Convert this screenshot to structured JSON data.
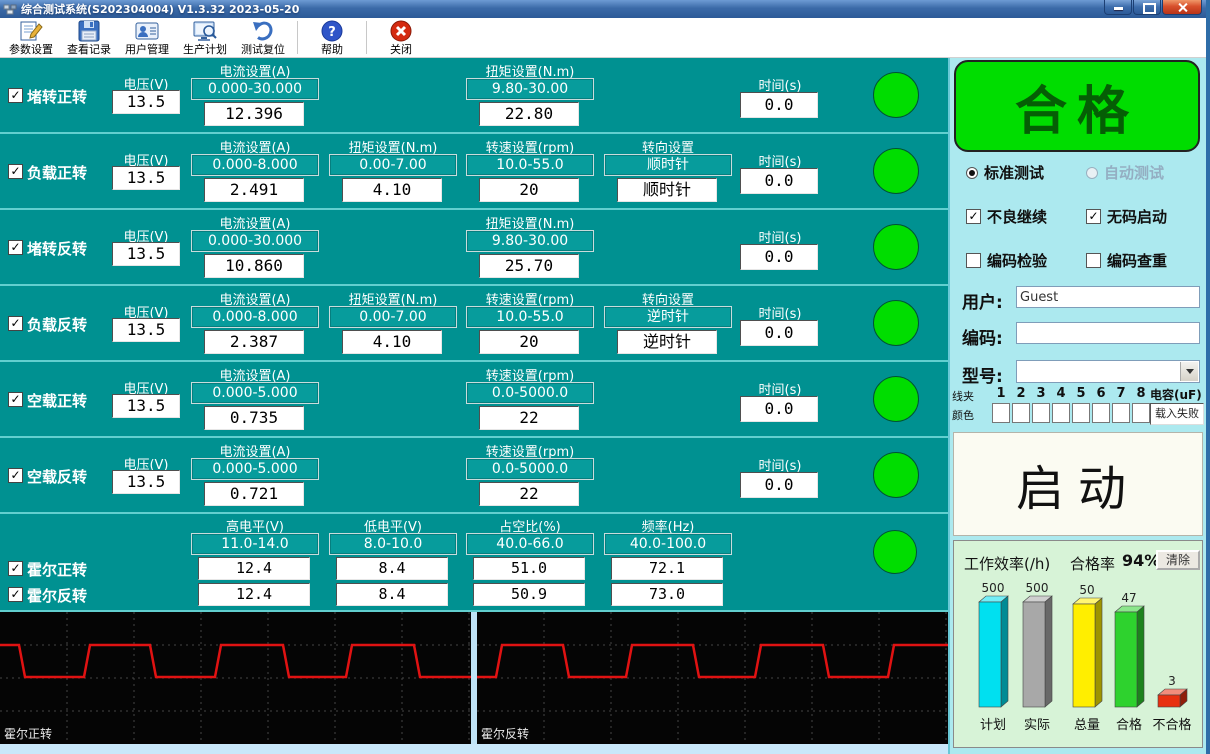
{
  "window": {
    "title": "综合测试系统(S202304004) V1.3.32 2023-05-20"
  },
  "toolbar": {
    "buttons": [
      {
        "label": "参数设置",
        "icon": "parameter-settings-icon"
      },
      {
        "label": "查看记录",
        "icon": "view-records-icon"
      },
      {
        "label": "用户管理",
        "icon": "user-management-icon"
      },
      {
        "label": "生产计划",
        "icon": "production-plan-icon"
      },
      {
        "label": "测试复位",
        "icon": "test-reset-icon",
        "separator_after": true
      },
      {
        "label": "帮助",
        "icon": "help-icon",
        "separator_after": true
      },
      {
        "label": "关闭",
        "icon": "close-app-icon"
      }
    ]
  },
  "test_rows": [
    {
      "name": "堵转正转",
      "checked": true,
      "voltage_label": "电压(V)",
      "voltage": "13.5",
      "time_label": "时间(s)",
      "time": "0.0",
      "status_color": "#00dd00",
      "columns": [
        {
          "header": "电流设置(A)",
          "range": "0.000-30.000",
          "value": "12.396"
        },
        null,
        {
          "header": "扭矩设置(N.m)",
          "range": "9.80-30.00",
          "value": "22.80"
        },
        null
      ]
    },
    {
      "name": "负载正转",
      "checked": true,
      "voltage_label": "电压(V)",
      "voltage": "13.5",
      "time_label": "时间(s)",
      "time": "0.0",
      "status_color": "#00dd00",
      "columns": [
        {
          "header": "电流设置(A)",
          "range": "0.000-8.000",
          "value": "2.491"
        },
        {
          "header": "扭矩设置(N.m)",
          "range": "0.00-7.00",
          "value": "4.10"
        },
        {
          "header": "转速设置(rpm)",
          "range": "10.0-55.0",
          "value": "20"
        },
        {
          "header": "转向设置",
          "range": "顺时针",
          "value": "顺时针"
        }
      ]
    },
    {
      "name": "堵转反转",
      "checked": true,
      "voltage_label": "电压(V)",
      "voltage": "13.5",
      "time_label": "时间(s)",
      "time": "0.0",
      "status_color": "#00dd00",
      "columns": [
        {
          "header": "电流设置(A)",
          "range": "0.000-30.000",
          "value": "10.860"
        },
        null,
        {
          "header": "扭矩设置(N.m)",
          "range": "9.80-30.00",
          "value": "25.70"
        },
        null
      ]
    },
    {
      "name": "负载反转",
      "checked": true,
      "voltage_label": "电压(V)",
      "voltage": "13.5",
      "time_label": "时间(s)",
      "time": "0.0",
      "status_color": "#00dd00",
      "columns": [
        {
          "header": "电流设置(A)",
          "range": "0.000-8.000",
          "value": "2.387"
        },
        {
          "header": "扭矩设置(N.m)",
          "range": "0.00-7.00",
          "value": "4.10"
        },
        {
          "header": "转速设置(rpm)",
          "range": "10.0-55.0",
          "value": "20"
        },
        {
          "header": "转向设置",
          "range": "逆时针",
          "value": "逆时针"
        }
      ]
    },
    {
      "name": "空载正转",
      "checked": true,
      "voltage_label": "电压(V)",
      "voltage": "13.5",
      "time_label": "时间(s)",
      "time": "0.0",
      "status_color": "#00dd00",
      "columns": [
        {
          "header": "电流设置(A)",
          "range": "0.000-5.000",
          "value": "0.735"
        },
        null,
        {
          "header": "转速设置(rpm)",
          "range": "0.0-5000.0",
          "value": "22"
        },
        null
      ]
    },
    {
      "name": "空载反转",
      "checked": true,
      "voltage_label": "电压(V)",
      "voltage": "13.5",
      "time_label": "时间(s)",
      "time": "0.0",
      "status_color": "#00dd00",
      "columns": [
        {
          "header": "电流设置(A)",
          "range": "0.000-5.000",
          "value": "0.721"
        },
        null,
        {
          "header": "转速设置(rpm)",
          "range": "0.0-5000.0",
          "value": "22"
        },
        null
      ]
    }
  ],
  "hall_section": {
    "status_color": "#00dd00",
    "columns": [
      {
        "header": "高电平(V)",
        "range": "11.0-14.0"
      },
      {
        "header": "低电平(V)",
        "range": "8.0-10.0"
      },
      {
        "header": "占空比(%)",
        "range": "40.0-66.0"
      },
      {
        "header": "频率(Hz)",
        "range": "40.0-100.0"
      }
    ],
    "rows": [
      {
        "name": "霍尔正转",
        "checked": true,
        "values": [
          "12.4",
          "8.4",
          "51.0",
          "72.1"
        ]
      },
      {
        "name": "霍尔反转",
        "checked": true,
        "values": [
          "12.4",
          "8.4",
          "50.9",
          "73.0"
        ]
      }
    ]
  },
  "side": {
    "result_label": "合格",
    "result_color": "#00dd00",
    "modes": [
      {
        "label": "标准测试",
        "selected": true,
        "enabled": true
      },
      {
        "label": "自动测试",
        "selected": false,
        "enabled": false
      }
    ],
    "options": [
      {
        "label": "不良继续",
        "checked": true
      },
      {
        "label": "无码启动",
        "checked": true
      },
      {
        "label": "编码检验",
        "checked": false
      },
      {
        "label": "编码查重",
        "checked": false
      }
    ],
    "user_label": "用户:",
    "user_value": "Guest",
    "code_label": "编码:",
    "code_value": "",
    "model_label": "型号:",
    "model_value": "",
    "clamp_label": "线夹",
    "color_label": "颜色",
    "clamp_numbers": [
      "1",
      "2",
      "3",
      "4",
      "5",
      "6",
      "7",
      "8"
    ],
    "capacitance_label": "电容(uF)",
    "capacitance_status": "载入失败",
    "start_label": "启动",
    "stats_title": "工作效率(/h)",
    "pass_rate_label": "合格率",
    "pass_rate_value": "94%",
    "clear_label": "清除"
  },
  "chart_data": [
    {
      "type": "bar",
      "title": "工作效率(/h)",
      "categories": [
        "计划",
        "实际",
        "总量",
        "合格",
        "不合格"
      ],
      "values": [
        500,
        500,
        50,
        47,
        3
      ],
      "value_labels": [
        "500",
        "500",
        "50",
        "47",
        "3"
      ],
      "bar_colors": [
        "#00e0f0",
        "#a8a8a8",
        "#ffee00",
        "#2ed22e",
        "#e83010"
      ],
      "height_fractions": [
        1.0,
        1.0,
        0.98,
        0.9,
        0.11
      ],
      "xlabel": "",
      "ylabel": "",
      "legend": "none",
      "grid": false
    },
    {
      "type": "line",
      "subtype": "square_wave",
      "title": "霍尔正转",
      "start_level": "high",
      "edge_positions": [
        0.047,
        0.184,
        0.324,
        0.462,
        0.608,
        0.742,
        0.886
      ],
      "high_y_frac": 0.25,
      "low_y_frac": 0.49,
      "line_color": "#e01212",
      "background": "#050505",
      "grid": "dashed"
    },
    {
      "type": "line",
      "subtype": "square_wave",
      "title": "霍尔反转",
      "start_level": "low",
      "edge_positions": [
        0.047,
        0.189,
        0.322,
        0.464,
        0.597,
        0.741,
        0.879
      ],
      "high_y_frac": 0.25,
      "low_y_frac": 0.49,
      "line_color": "#e01212",
      "background": "#050505",
      "grid": "dashed"
    }
  ]
}
